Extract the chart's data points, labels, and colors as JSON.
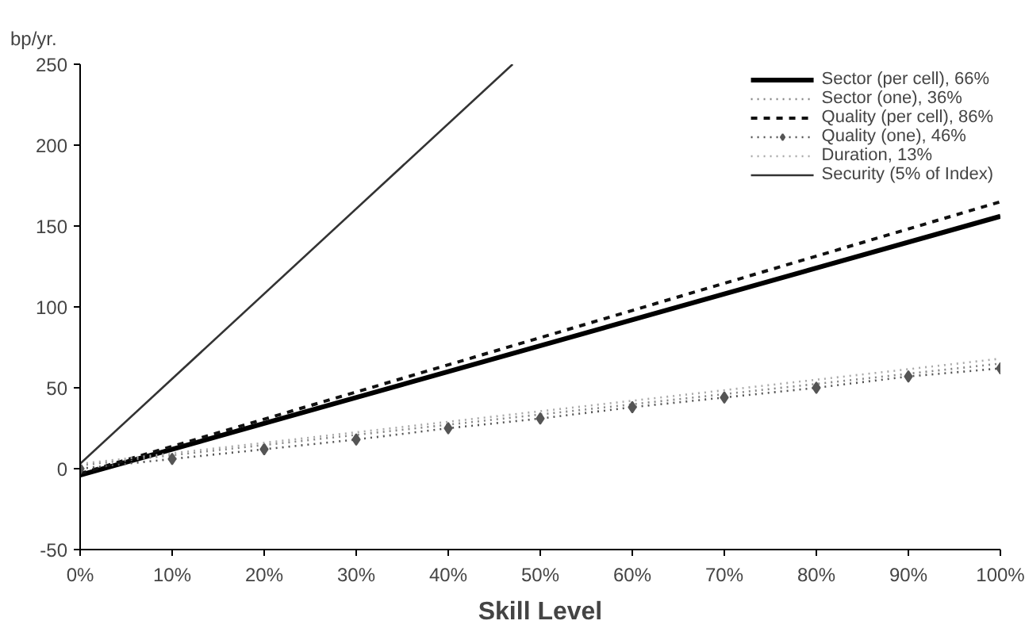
{
  "chart_data": {
    "type": "line",
    "xlabel": "Skill Level",
    "ylabel": "bp/yr.",
    "xlim": [
      0,
      100
    ],
    "ylim": [
      -50,
      250
    ],
    "xticks": [
      {
        "value": 0,
        "label": "0%"
      },
      {
        "value": 10,
        "label": "10%"
      },
      {
        "value": 20,
        "label": "20%"
      },
      {
        "value": 30,
        "label": "30%"
      },
      {
        "value": 40,
        "label": "40%"
      },
      {
        "value": 50,
        "label": "50%"
      },
      {
        "value": 60,
        "label": "60%"
      },
      {
        "value": 70,
        "label": "70%"
      },
      {
        "value": 80,
        "label": "80%"
      },
      {
        "value": 90,
        "label": "90%"
      },
      {
        "value": 100,
        "label": "100%"
      }
    ],
    "yticks": [
      -50,
      0,
      50,
      100,
      150,
      200,
      250
    ],
    "grid": false,
    "legend": "top right",
    "series": [
      {
        "name": "Sector (per cell), 66%",
        "color": "#000000",
        "x": [
          0,
          100
        ],
        "values": [
          -4,
          156
        ],
        "line_style": "solid",
        "marker": "none"
      },
      {
        "name": "Sector (one), 36%",
        "color": "#888888",
        "x": [
          0,
          100
        ],
        "values": [
          2,
          65
        ],
        "line_style": "dotted",
        "marker": "none"
      },
      {
        "name": "Quality (per cell), 86%",
        "color": "#111111",
        "x": [
          0,
          100
        ],
        "values": [
          -3,
          165
        ],
        "line_style": "dashed",
        "marker": "none"
      },
      {
        "name": "Quality (one), 46%",
        "color": "#555555",
        "x": [
          0,
          10,
          20,
          30,
          40,
          50,
          60,
          70,
          80,
          90,
          100
        ],
        "values": [
          0,
          6,
          12,
          18,
          25,
          31,
          38,
          44,
          50,
          57,
          62
        ],
        "line_style": "dotted",
        "marker": "diamond"
      },
      {
        "name": "Duration, 13%",
        "color": "#aaaaaa",
        "x": [
          0,
          100
        ],
        "values": [
          3,
          68
        ],
        "line_style": "dotted",
        "marker": "none"
      },
      {
        "name": "Security (5% of Index)",
        "color": "#333333",
        "x": [
          0,
          47
        ],
        "values": [
          3,
          250
        ],
        "line_style": "solid",
        "marker": "none"
      }
    ]
  }
}
